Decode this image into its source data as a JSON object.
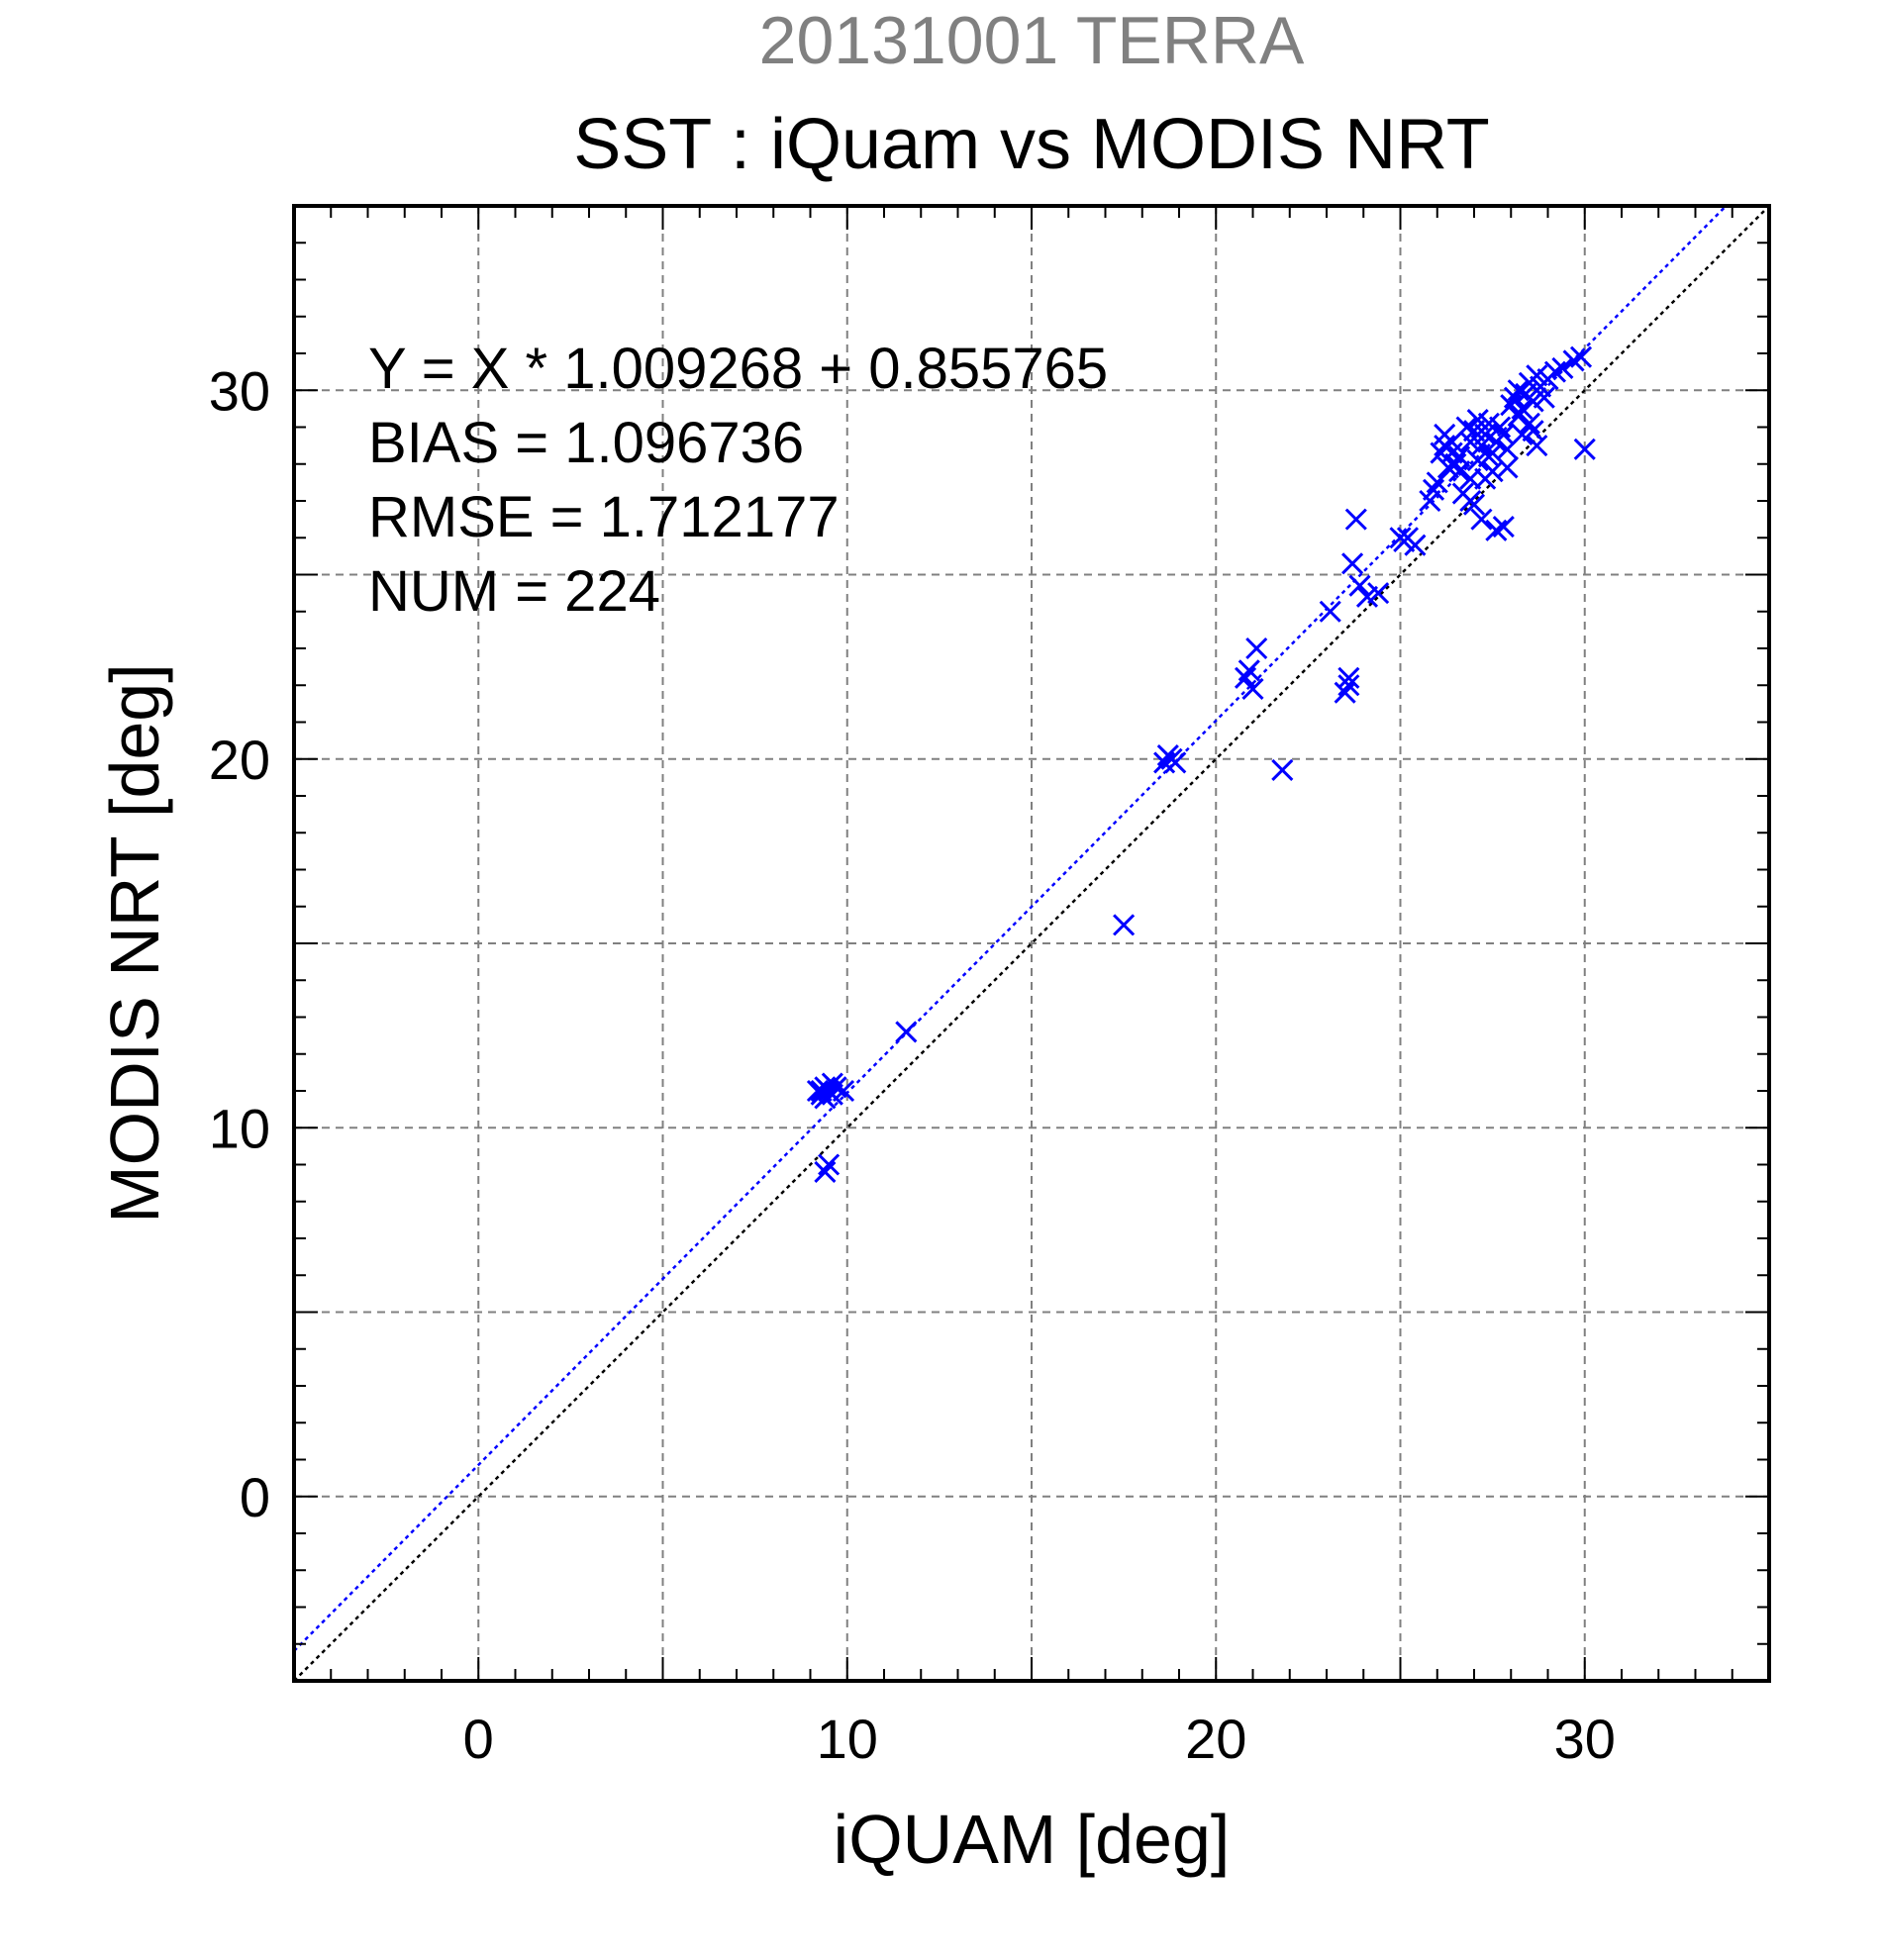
{
  "chart_data": {
    "type": "scatter",
    "supertitle": "20131001 TERRA",
    "title": "SST : iQuam vs MODIS NRT",
    "xlabel": "iQUAM [deg]",
    "ylabel": "MODIS NRT [deg]",
    "xlim": [
      -5,
      35
    ],
    "ylim": [
      -5,
      35
    ],
    "xticks": [
      0,
      10,
      20,
      30
    ],
    "yticks": [
      0,
      10,
      20,
      30
    ],
    "xtick_labels": [
      "0",
      "10",
      "20",
      "30"
    ],
    "ytick_labels": [
      "0",
      "10",
      "20",
      "30"
    ],
    "grid": true,
    "stats": [
      "Y = X * 1.009268 + 0.855765",
      "BIAS = 1.096736",
      "RMSE = 1.712177",
      "NUM = 224"
    ],
    "fit": {
      "slope": 1.009268,
      "intercept": 0.855765,
      "color": "#0000ff"
    },
    "identity_line_color": "#000000",
    "marker": "x",
    "marker_color": "#0000ff",
    "series": [
      {
        "x": [
          9.2,
          9.3,
          9.4,
          9.5,
          9.6,
          9.7,
          9.9,
          9.3,
          9.4,
          9.6,
          9.4,
          9.5,
          11.6,
          17.5,
          18.6,
          18.7,
          18.8,
          18.9,
          20.8,
          20.9,
          21.0,
          21.1,
          21.8,
          23.1,
          23.5,
          23.6,
          23.7,
          23.8,
          23.9,
          24.1,
          23.6,
          24.4,
          25.0,
          25.1,
          25.2,
          25.4,
          25.8,
          25.9,
          26.0,
          26.1,
          26.2,
          26.3,
          26.4,
          26.5,
          26.6,
          26.8,
          26.9,
          27.0,
          27.1,
          27.2,
          27.3,
          27.4,
          27.5,
          27.6,
          27.7,
          27.8,
          27.9,
          26.2,
          26.4,
          26.7,
          27.0,
          27.2,
          27.5,
          27.8,
          26.9,
          27.3,
          27.6,
          28.0,
          28.1,
          28.2,
          28.3,
          28.4,
          28.5,
          28.6,
          28.7,
          28.8,
          28.9,
          29.0,
          29.2,
          29.4,
          29.7,
          29.9,
          30.0,
          28.3,
          28.5,
          28.7,
          28.2,
          28.6,
          27.4,
          27.9,
          27.1,
          26.9,
          26.6
        ],
        "y": [
          11.0,
          10.9,
          11.1,
          11.0,
          10.9,
          11.1,
          11.0,
          11.0,
          10.8,
          11.2,
          8.8,
          9.0,
          12.6,
          15.5,
          19.9,
          20.1,
          20.0,
          19.9,
          22.2,
          22.4,
          21.9,
          23.0,
          19.7,
          24.0,
          21.8,
          22.0,
          25.3,
          26.5,
          24.7,
          24.4,
          22.2,
          24.5,
          26.0,
          25.9,
          26.0,
          25.8,
          27.0,
          27.3,
          27.5,
          28.3,
          28.5,
          27.9,
          28.6,
          28.0,
          28.2,
          29.0,
          28.6,
          28.9,
          29.2,
          28.5,
          28.8,
          29.1,
          28.3,
          28.6,
          29.0,
          28.8,
          28.4,
          28.8,
          28.3,
          27.2,
          26.9,
          26.5,
          27.8,
          26.3,
          27.0,
          27.6,
          26.2,
          29.6,
          29.8,
          30.0,
          29.5,
          29.9,
          30.2,
          29.7,
          30.4,
          30.1,
          29.8,
          30.3,
          30.5,
          30.6,
          30.8,
          30.9,
          28.4,
          28.8,
          29.1,
          28.5,
          29.3,
          28.9,
          28.2,
          27.9,
          28.1,
          27.6,
          27.8
        ]
      }
    ]
  }
}
